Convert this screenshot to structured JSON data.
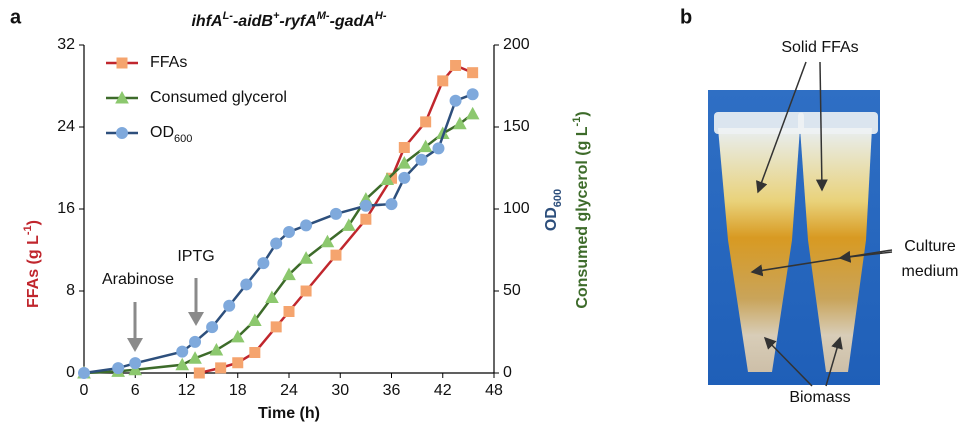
{
  "chart_data": {
    "type": "line",
    "panel_label": "a",
    "title": [
      "ihfA",
      "L-",
      "-aidB",
      "+",
      "-ryfA",
      "M-",
      "-gadA",
      "H-"
    ],
    "x_label": "Time (h)",
    "y_label": "FFAs (g L-1)",
    "y2_labels": [
      "OD600",
      "Consumed glycerol (g L-1)"
    ],
    "xlim": [
      0,
      48
    ],
    "xticks": [
      0,
      6,
      12,
      18,
      24,
      30,
      36,
      42,
      48
    ],
    "ylim": [
      0,
      32
    ],
    "yticks": [
      0,
      8,
      16,
      24,
      32
    ],
    "y2lim": [
      0,
      200
    ],
    "y2ticks": [
      0,
      50,
      100,
      150,
      200
    ],
    "legend": "upper left",
    "annotations": [
      "Arabinose",
      "IPTG"
    ],
    "series": [
      {
        "name": "FFAs",
        "color": "#c0262d",
        "marker_color": "#f5a46e",
        "marker": "square",
        "x": [
          13.5,
          16,
          18,
          20,
          22.5,
          24,
          26,
          29.5,
          33,
          36,
          37.5,
          40,
          42,
          43.5,
          45.5
        ],
        "values": [
          0,
          0.5,
          1,
          2,
          4.5,
          6,
          8,
          11.5,
          15,
          19,
          22,
          24.5,
          28.5,
          30,
          29.3
        ]
      },
      {
        "name": "Consumed glycerol",
        "color": "#3d6b2a",
        "marker_color": "#8cc86e",
        "marker": "triangle",
        "axis": "y2",
        "x": [
          0,
          4,
          6,
          11.5,
          13,
          15.5,
          18,
          20,
          22,
          24,
          26,
          28.5,
          31,
          33,
          35.5,
          37.5,
          40,
          42,
          44,
          45.5
        ],
        "values": [
          0,
          1,
          2,
          5,
          9,
          14,
          22,
          32,
          46,
          60,
          70,
          80,
          90,
          106,
          118,
          128,
          138,
          146,
          152,
          158
        ]
      },
      {
        "name": "OD600",
        "color": "#2d4f7c",
        "marker_color": "#7fa9dc",
        "marker": "circle",
        "axis": "y2",
        "x": [
          0,
          4,
          6,
          11.5,
          13,
          15,
          17,
          19,
          21,
          22.5,
          24,
          26,
          29.5,
          33,
          36,
          37.5,
          39.5,
          41.5,
          43.5,
          45.5
        ],
        "values": [
          0,
          3,
          6,
          13,
          19,
          28,
          41,
          54,
          67,
          79,
          86,
          90,
          97,
          102,
          103,
          119,
          130,
          137,
          166,
          170
        ]
      }
    ]
  },
  "photo_panel": {
    "panel_label": "b",
    "solid_ffas": "Solid FFAs",
    "culture_medium": [
      "Culture",
      "medium"
    ],
    "biomass": "Biomass"
  }
}
